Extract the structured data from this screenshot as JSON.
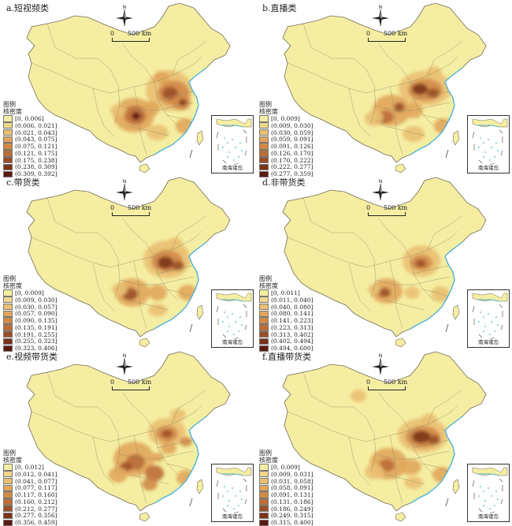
{
  "map_kind": "kernel-density",
  "north_label": "N",
  "colors": [
    "#f5eea2",
    "#f2d689",
    "#eac072",
    "#e1a65b",
    "#d18a48",
    "#bd6d36",
    "#9b4f27",
    "#7a3319",
    "#5a1a10"
  ],
  "panels": [
    {
      "title": "a.短视频类",
      "legend_title": "图例",
      "legend_subtitle": "核密度",
      "ranges": [
        "0, 0.006",
        "0.006, 0.021",
        "0.021, 0.043",
        "0.043, 0.075",
        "0.075, 0.121",
        "0.121, 0.175",
        "0.175, 0.238",
        "0.238, 0.309",
        "0.309, 0.392"
      ],
      "scale_zero": "0",
      "scale_label": "500 km",
      "inset_label": "南海诸岛"
    },
    {
      "title": "b.直播类",
      "legend_title": "图例",
      "legend_subtitle": "核密度",
      "ranges": [
        "0, 0.009",
        "0.009, 0.030",
        "0.030, 0.059",
        "0.059, 0.091",
        "0.091, 0.126",
        "0.126, 0.170",
        "0.170, 0.222",
        "0.222, 0.277",
        "0.277, 0.359"
      ],
      "scale_zero": "0",
      "scale_label": "500 km",
      "inset_label": "南海诸岛"
    },
    {
      "title": "c.带货类",
      "legend_title": "图例",
      "legend_subtitle": "核密度",
      "ranges": [
        "0, 0.009",
        "0.009, 0.030",
        "0.030, 0.057",
        "0.057, 0.090",
        "0.090, 0.135",
        "0.135, 0.191",
        "0.191, 0.255",
        "0.255, 0.323",
        "0.323, 0.406"
      ],
      "scale_zero": "0",
      "scale_label": "500 km",
      "inset_label": "南海诸岛"
    },
    {
      "title": "d.非带货类",
      "legend_title": "图例",
      "legend_subtitle": "核密度",
      "ranges": [
        "0, 0.011",
        "0.011, 0.040",
        "0.040, 0.080",
        "0.080, 0.141",
        "0.141, 0.223",
        "0.223, 0.313",
        "0.313, 0.402",
        "0.402, 0.494",
        "0.494, 0.600"
      ],
      "scale_zero": "0",
      "scale_label": "500 km",
      "inset_label": "南海诸岛"
    },
    {
      "title": "e.视频带货类",
      "legend_title": "图例",
      "legend_subtitle": "核密度",
      "ranges": [
        "0, 0.012",
        "0.012, 0.041",
        "0.041, 0.077",
        "0.077, 0.117",
        "0.117, 0.160",
        "0.160, 0.212",
        "0.212, 0.277",
        "0.277, 0.356",
        "0.356, 0.459"
      ],
      "scale_zero": "0",
      "scale_label": "500 km",
      "inset_label": "南海诸岛"
    },
    {
      "title": "f.直播带货类",
      "legend_title": "图例",
      "legend_subtitle": "核密度",
      "ranges": [
        "0, 0.009",
        "0.009, 0.031",
        "0.031, 0.058",
        "0.058, 0.091",
        "0.091, 0.131",
        "0.131, 0.186",
        "0.186, 0.249",
        "0.249, 0.315",
        "0.315, 0.400"
      ],
      "scale_zero": "0",
      "scale_label": "500 km",
      "inset_label": "南海诸岛"
    }
  ]
}
